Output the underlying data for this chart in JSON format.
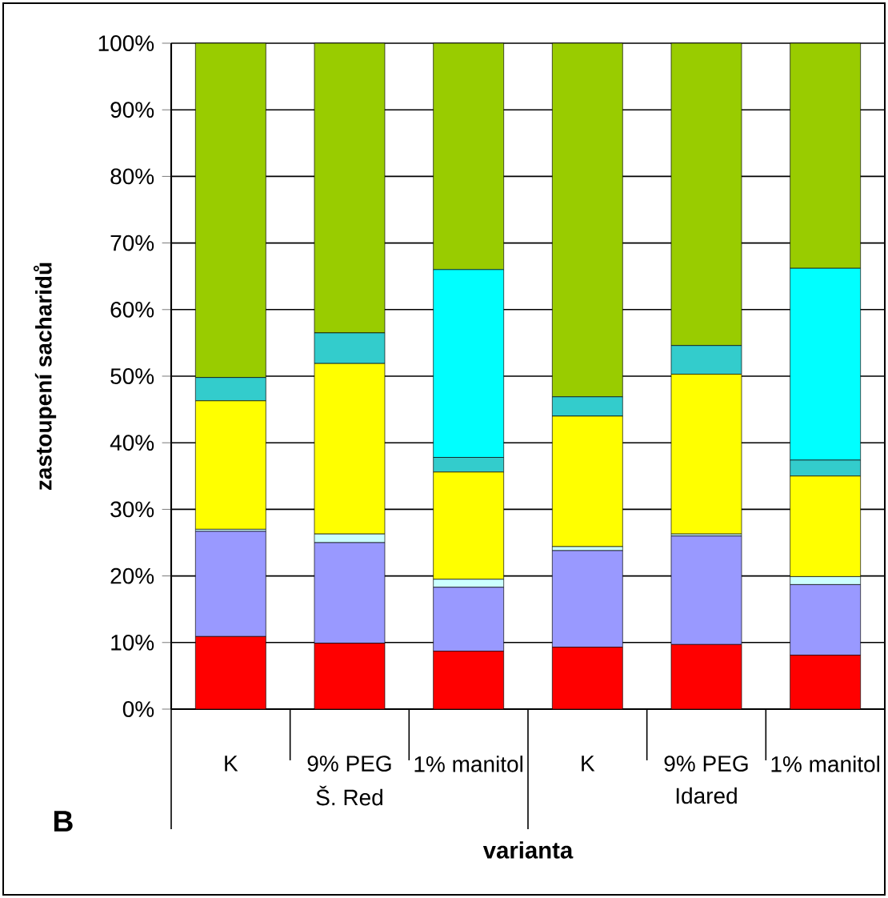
{
  "chart_data": {
    "type": "bar",
    "stacked": true,
    "categories": [
      "K",
      "9% PEG",
      "1% manitol",
      "K",
      "9% PEG",
      "1% manitol"
    ],
    "series": [
      {
        "color": "#ff0000",
        "values": [
          10.9,
          9.9,
          8.7,
          9.3,
          9.7,
          8.1
        ]
      },
      {
        "color": "#9999ff",
        "values": [
          15.8,
          15.1,
          9.6,
          14.5,
          16.3,
          10.6
        ]
      },
      {
        "color": "#ccffff",
        "values": [
          0.3,
          1.3,
          1.2,
          0.6,
          0.3,
          1.2
        ]
      },
      {
        "color": "#ffff00",
        "values": [
          19.3,
          25.6,
          16.1,
          19.6,
          24.0,
          15.1
        ]
      },
      {
        "color": "#33cccc",
        "values": [
          3.5,
          4.6,
          2.2,
          2.9,
          4.3,
          2.4
        ]
      },
      {
        "color": "#00ffff",
        "values": [
          0,
          0,
          28.2,
          0,
          0,
          28.8
        ]
      },
      {
        "color": "#99cc00",
        "values": [
          50.2,
          43.5,
          34.0,
          53.1,
          45.4,
          33.8
        ]
      }
    ],
    "ylim": [
      0,
      100
    ],
    "yticks": [
      {
        "value": 0,
        "label": "0%"
      },
      {
        "value": 10,
        "label": "10%"
      },
      {
        "value": 20,
        "label": "20%"
      },
      {
        "value": 30,
        "label": "30%"
      },
      {
        "value": 40,
        "label": "40%"
      },
      {
        "value": 50,
        "label": "50%"
      },
      {
        "value": 60,
        "label": "60%"
      },
      {
        "value": 70,
        "label": "70%"
      },
      {
        "value": 80,
        "label": "80%"
      },
      {
        "value": 90,
        "label": "90%"
      },
      {
        "value": 100,
        "label": "100%"
      }
    ],
    "grid": "y",
    "xlabel": "varianta",
    "ylabel": "zastoupení sacharidů",
    "annotations": [
      "Š. Red",
      "Idared",
      "B"
    ]
  }
}
